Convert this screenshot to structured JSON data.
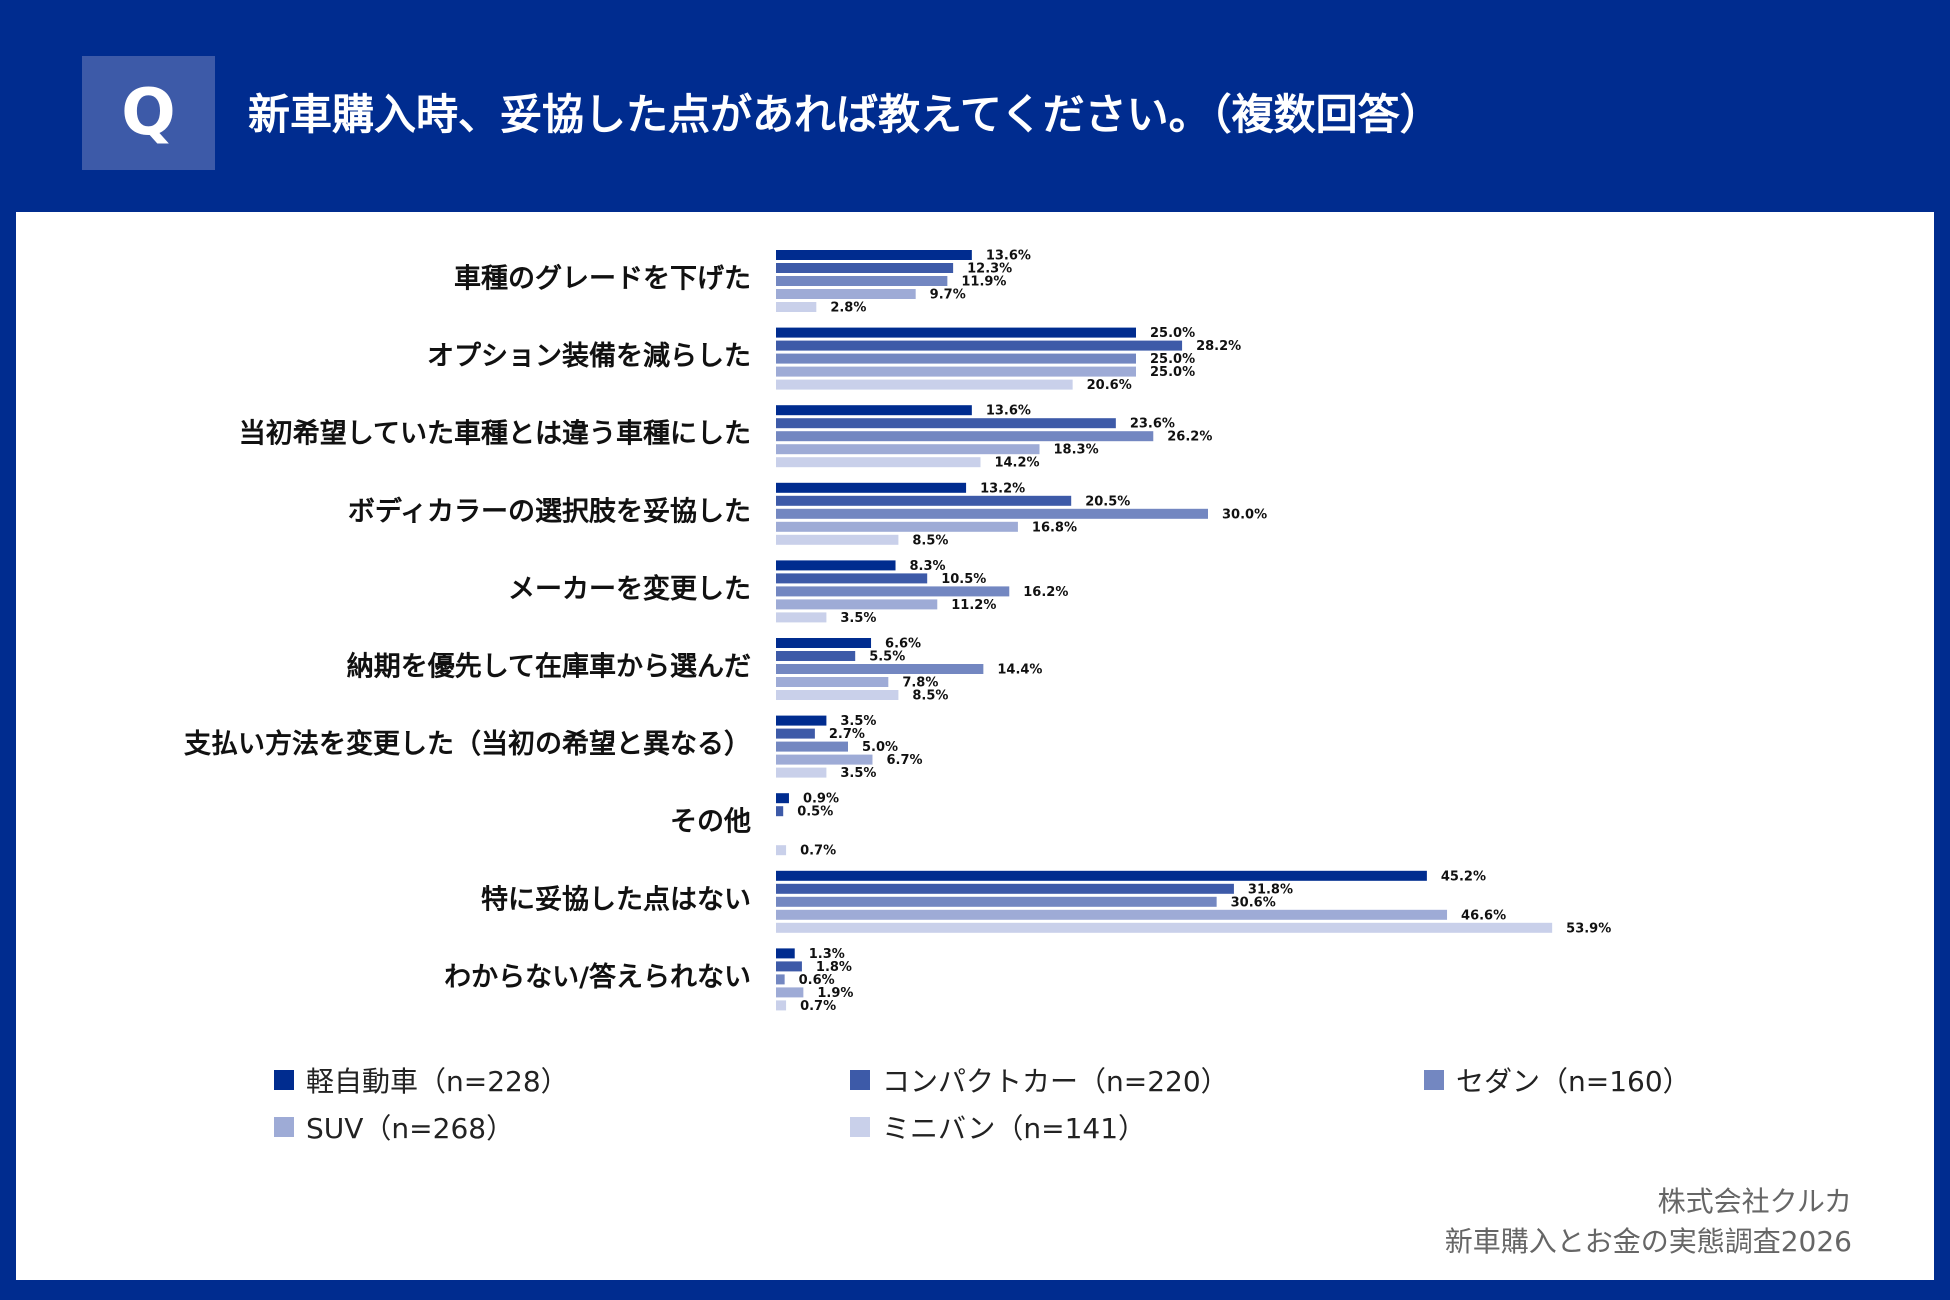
{
  "header": {
    "badge": "Q",
    "title": "新車購入時、妥協した点があれば教えてください。（複数回答）"
  },
  "chart_data": {
    "type": "bar",
    "orientation": "horizontal",
    "categories": [
      "車種のグレードを下げた",
      "オプション装備を減らした",
      "当初希望していた車種とは違う車種にした",
      "ボディカラーの選択肢を妥協した",
      "メーカーを変更した",
      "納期を優先して在庫車から選んだ",
      "支払い方法を変更した（当初の希望と異なる）",
      "その他",
      "特に妥協した点はない",
      "わからない/答えられない"
    ],
    "series": [
      {
        "name": "軽自動車（n=228）",
        "color": "#002c8f",
        "values": [
          13.6,
          25.0,
          13.6,
          13.2,
          8.3,
          6.6,
          3.5,
          0.9,
          45.2,
          1.3
        ],
        "labels": [
          "13.6%",
          "25.0%",
          "13.6%",
          "13.2%",
          "8.3%",
          "6.6%",
          "3.5%",
          "0.9%",
          "45.2%",
          "1.3%"
        ]
      },
      {
        "name": "コンパクトカー（n=220）",
        "color": "#3d5aa8",
        "values": [
          12.3,
          28.2,
          23.6,
          20.5,
          10.5,
          5.5,
          2.7,
          0.5,
          31.8,
          1.8
        ],
        "labels": [
          "12.3%",
          "28.2%",
          "23.6%",
          "20.5%",
          "10.5%",
          "5.5%",
          "2.7%",
          "0.5%",
          "31.8%",
          "1.8%"
        ]
      },
      {
        "name": "セダン（n=160）",
        "color": "#7387c1",
        "values": [
          11.9,
          25.0,
          26.2,
          30.0,
          16.2,
          14.4,
          5.0,
          0,
          30.6,
          0.6
        ],
        "labels": [
          "11.9%",
          "25.0%",
          "26.2%",
          "30.0%",
          "16.2%",
          "14.4%",
          "5.0%",
          "",
          "30.6%",
          "0.6%"
        ]
      },
      {
        "name": "SUV（n=268）",
        "color": "#9eabd6",
        "values": [
          9.7,
          25.0,
          18.3,
          16.8,
          11.2,
          7.8,
          6.7,
          0,
          46.6,
          1.9
        ],
        "labels": [
          "9.7%",
          "25.0%",
          "18.3%",
          "16.8%",
          "11.2%",
          "7.8%",
          "6.7%",
          "",
          "46.6%",
          "1.9%"
        ]
      },
      {
        "name": "ミニバン（n=141）",
        "color": "#c9d0ea",
        "values": [
          2.8,
          20.6,
          14.2,
          8.5,
          3.5,
          8.5,
          3.5,
          0.7,
          53.9,
          0.7
        ],
        "labels": [
          "2.8%",
          "20.6%",
          "14.2%",
          "8.5%",
          "3.5%",
          "8.5%",
          "3.5%",
          "0.7%",
          "53.9%",
          "0.7%"
        ]
      }
    ],
    "legend_placement": "bottom",
    "grid": false
  },
  "credit": {
    "company": "株式会社クルカ",
    "survey": "新車購入とお金の実態調査2026"
  }
}
